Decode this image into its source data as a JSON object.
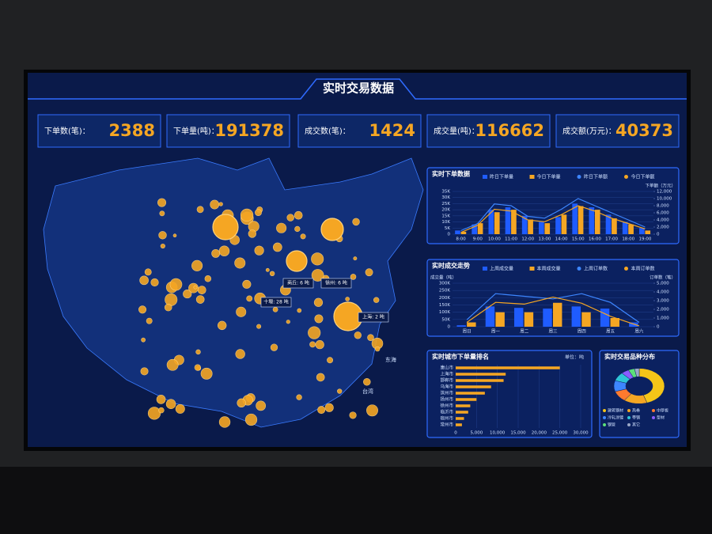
{
  "title": "实时交易数据",
  "kpis": [
    {
      "label": "下单数(笔)：",
      "value": 2388
    },
    {
      "label": "下单量(吨)：",
      "value": 191378
    },
    {
      "label": "成交数(笔)：",
      "value": 1424
    },
    {
      "label": "成交量(吨)：",
      "value": 116662
    },
    {
      "label": "成交额(万元)：",
      "value": 40373
    }
  ],
  "map": {
    "callouts": [
      "十堰: 28 吨",
      "商丘: 6 吨",
      "徐州: 6 吨",
      "上海: 2 吨"
    ],
    "places": [
      "东海",
      "台湾"
    ]
  },
  "chart_data": [
    {
      "type": "bar-line",
      "title": "实时下单数据",
      "categories": [
        "8:00",
        "9:00",
        "10:00",
        "11:00",
        "12:00",
        "13:00",
        "14:00",
        "15:00",
        "16:00",
        "17:00",
        "18:00",
        "19:00"
      ],
      "series": [
        {
          "name": "昨日下单量",
          "color": "#1f5cff",
          "kind": "bar",
          "values": [
            3000,
            8000,
            20000,
            22000,
            15000,
            10000,
            14000,
            25000,
            22000,
            16000,
            10000,
            5000
          ]
        },
        {
          "name": "今日下单量",
          "color": "#f5a623",
          "kind": "bar",
          "values": [
            2000,
            9000,
            18000,
            20000,
            12000,
            9000,
            16000,
            23000,
            20000,
            13000,
            8000,
            3000
          ]
        },
        {
          "name": "昨日下单额",
          "color": "#3d86ff",
          "kind": "line",
          "axis": "y2",
          "values": [
            1000,
            3000,
            8500,
            8000,
            5000,
            4500,
            7000,
            10000,
            8000,
            6000,
            4000,
            2000
          ]
        },
        {
          "name": "今日下单额",
          "color": "#f5a623",
          "kind": "line",
          "axis": "y2",
          "values": [
            500,
            2500,
            7000,
            6500,
            4000,
            3500,
            5500,
            8000,
            6500,
            4500,
            3000,
            1500
          ]
        }
      ],
      "ylim": [
        0,
        35000
      ],
      "yticks": [
        0,
        {
          "value": 5000,
          "label": "5K"
        },
        {
          "value": 10000,
          "label": "10K"
        },
        {
          "value": 15000,
          "label": "15K"
        },
        {
          "value": 20000,
          "label": "20K"
        },
        {
          "value": 25000,
          "label": "25K"
        },
        {
          "value": 30000,
          "label": "30K"
        },
        {
          "value": 35000,
          "label": "35K"
        }
      ],
      "y2label": "下单额（万元）",
      "y2lim": [
        0,
        12000
      ],
      "y2ticks": [
        0,
        {
          "value": 2000,
          "label": "2,000"
        },
        {
          "value": 4000,
          "label": "4,000"
        },
        {
          "value": 6000,
          "label": "6,000"
        },
        {
          "value": 8000,
          "label": "8,000"
        },
        {
          "value": 10000,
          "label": "10,000"
        },
        {
          "value": 12000,
          "label": "12,000"
        }
      ]
    },
    {
      "type": "bar-line",
      "title": "实时成交走势",
      "categories": [
        "周日",
        "周一",
        "周二",
        "周三",
        "周四",
        "周五",
        "周六"
      ],
      "series": [
        {
          "name": "上周成交量",
          "color": "#1f5cff",
          "kind": "bar",
          "values": [
            10000,
            140000,
            130000,
            125000,
            140000,
            125000,
            30000
          ]
        },
        {
          "name": "本周成交量",
          "color": "#f5a623",
          "kind": "bar",
          "values": [
            30000,
            100000,
            100000,
            165000,
            100000,
            60000,
            0
          ]
        },
        {
          "name": "上周订单数",
          "color": "#3d86ff",
          "kind": "line",
          "axis": "y2",
          "values": [
            800,
            3800,
            3500,
            3200,
            3800,
            2800,
            500
          ]
        },
        {
          "name": "本周订单数",
          "color": "#f5a623",
          "kind": "line",
          "axis": "y2",
          "values": [
            500,
            2800,
            2600,
            3400,
            2700,
            1200,
            100
          ]
        }
      ],
      "ylabel": "成交量（吨）",
      "ylim": [
        0,
        300000
      ],
      "yticks": [
        0,
        {
          "value": 50000,
          "label": "50K"
        },
        {
          "value": 100000,
          "label": "100K"
        },
        {
          "value": 150000,
          "label": "150K"
        },
        {
          "value": 200000,
          "label": "200K"
        },
        {
          "value": 250000,
          "label": "250K"
        },
        {
          "value": 300000,
          "label": "300K"
        }
      ],
      "y2label": "订单数（笔）",
      "y2lim": [
        0,
        5000
      ],
      "y2ticks": [
        0,
        {
          "value": 1000,
          "label": "1,000"
        },
        {
          "value": 2000,
          "label": "2,000"
        },
        {
          "value": 3000,
          "label": "3,000"
        },
        {
          "value": 4000,
          "label": "4,000"
        },
        {
          "value": 5000,
          "label": "5,000"
        }
      ]
    },
    {
      "type": "hbar",
      "title": "实时城市下单量排名",
      "unit": "单位：吨",
      "color": "#f5a623",
      "categories": [
        "唐山市",
        "上海市",
        "邯郸市",
        "乌海市",
        "滨州市",
        "扬州市",
        "徐州市",
        "临沂市",
        "宿州市",
        "常州市"
      ],
      "values": [
        25000,
        12000,
        11500,
        8500,
        7000,
        5000,
        3500,
        3000,
        2000,
        1500
      ],
      "xlim": [
        0,
        30000
      ],
      "xticks": [
        0,
        {
          "value": 5000,
          "label": "5,000"
        },
        {
          "value": 10000,
          "label": "10,000"
        },
        {
          "value": 15000,
          "label": "15,000"
        },
        {
          "value": 20000,
          "label": "20,000"
        },
        {
          "value": 25000,
          "label": "25,000"
        },
        {
          "value": 30000,
          "label": "30,000"
        }
      ]
    },
    {
      "type": "pie",
      "title": "实时交易品种分布",
      "categories": [
        "建筑钢材",
        "热卷",
        "中厚板",
        "冷轧涂镀",
        "带钢",
        "型材",
        "钢管",
        "其它"
      ],
      "values": [
        45,
        15,
        10,
        10,
        8,
        5,
        4,
        3
      ],
      "colors": [
        "#f5c518",
        "#f5a623",
        "#ff7a2e",
        "#3d86ff",
        "#2ec4d6",
        "#8a5cff",
        "#5ce07a",
        "#9aa7c7"
      ]
    }
  ]
}
